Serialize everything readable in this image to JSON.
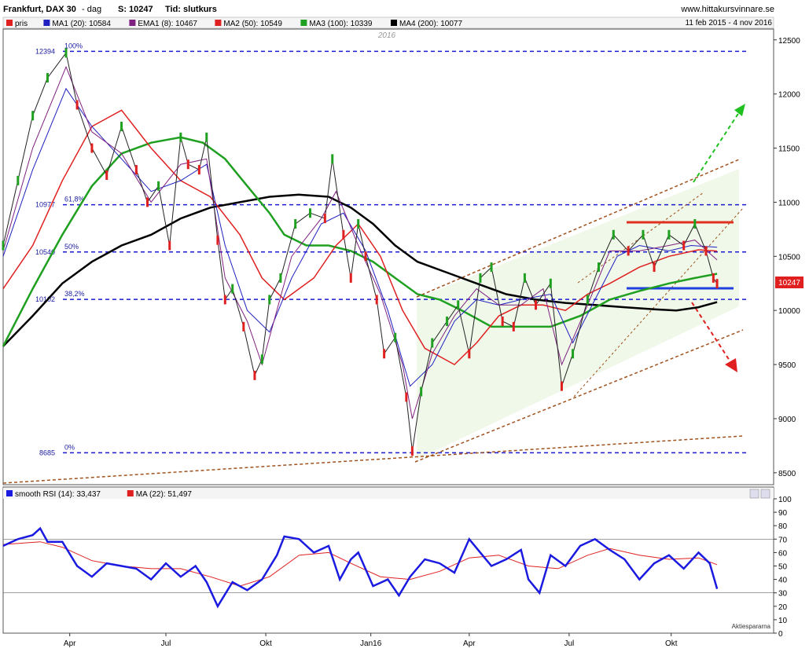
{
  "header": {
    "title": "Frankfurt, DAX 30",
    "period": "- dag",
    "last": "S: 10247",
    "tid": "Tid: slutkurs",
    "site": "www.hittakursvinnare.se",
    "range": "11 feb 2015 - 4 nov 2016"
  },
  "legend": [
    {
      "label": "pris",
      "color": "#e02020"
    },
    {
      "label": "MA1 (20): 10584",
      "color": "#2020c0"
    },
    {
      "label": "EMA1 (8): 10467",
      "color": "#802080"
    },
    {
      "label": "MA2 (50): 10549",
      "color": "#e02020"
    },
    {
      "label": "MA3 (100): 10339",
      "color": "#20a020"
    },
    {
      "label": "MA4 (200): 10077",
      "color": "#000000"
    }
  ],
  "rsi_legend": [
    {
      "label": "smooth RSI (14): 33,437",
      "color": "#1a1ae0"
    },
    {
      "label": "MA (22): 51,497",
      "color": "#e02020"
    }
  ],
  "year_label": "2016",
  "last_price_badge": "10247",
  "watermark": "Aktiespararna",
  "chart_data": {
    "type": "line",
    "title": "Frankfurt, DAX 30",
    "x_ticks": [
      "Apr",
      "Jul",
      "Okt",
      "Jan16",
      "Apr",
      "Jul",
      "Okt"
    ],
    "y_ticks": [
      8500,
      9000,
      9500,
      10000,
      10500,
      11000,
      11500,
      12000,
      12500
    ],
    "ylim": [
      8390,
      12600
    ],
    "rsi_ticks": [
      0,
      10,
      20,
      30,
      40,
      50,
      60,
      70,
      80,
      90,
      100
    ],
    "rsi_ylim": [
      0,
      100
    ],
    "rsi_levels": [
      30,
      70
    ],
    "fib_levels": [
      {
        "value": 12394,
        "label": "12394",
        "pct": "100%"
      },
      {
        "value": 10977,
        "label": "10977",
        "pct": "61,8%"
      },
      {
        "value": 10540,
        "label": "10540",
        "pct": "50%"
      },
      {
        "value": 10102,
        "label": "10102",
        "pct": "38,2%"
      },
      {
        "value": 8685,
        "label": "8685",
        "pct": "0%"
      }
    ],
    "price_path": [
      [
        0.0,
        10600
      ],
      [
        0.02,
        11200
      ],
      [
        0.04,
        11800
      ],
      [
        0.06,
        12150
      ],
      [
        0.085,
        12380
      ],
      [
        0.1,
        11900
      ],
      [
        0.12,
        11500
      ],
      [
        0.14,
        11250
      ],
      [
        0.16,
        11700
      ],
      [
        0.18,
        11300
      ],
      [
        0.195,
        11000
      ],
      [
        0.21,
        11150
      ],
      [
        0.225,
        10600
      ],
      [
        0.24,
        11600
      ],
      [
        0.25,
        11350
      ],
      [
        0.265,
        11300
      ],
      [
        0.275,
        11600
      ],
      [
        0.29,
        10650
      ],
      [
        0.3,
        10100
      ],
      [
        0.31,
        10200
      ],
      [
        0.325,
        9850
      ],
      [
        0.34,
        9400
      ],
      [
        0.35,
        9550
      ],
      [
        0.36,
        10100
      ],
      [
        0.375,
        10300
      ],
      [
        0.395,
        10800
      ],
      [
        0.415,
        10900
      ],
      [
        0.435,
        10850
      ],
      [
        0.445,
        11400
      ],
      [
        0.46,
        10700
      ],
      [
        0.47,
        10300
      ],
      [
        0.48,
        10800
      ],
      [
        0.49,
        10500
      ],
      [
        0.505,
        10100
      ],
      [
        0.515,
        9600
      ],
      [
        0.53,
        9750
      ],
      [
        0.545,
        9200
      ],
      [
        0.553,
        8700
      ],
      [
        0.565,
        9250
      ],
      [
        0.58,
        9700
      ],
      [
        0.6,
        9900
      ],
      [
        0.615,
        10050
      ],
      [
        0.63,
        9600
      ],
      [
        0.645,
        10300
      ],
      [
        0.66,
        10400
      ],
      [
        0.675,
        9900
      ],
      [
        0.69,
        9850
      ],
      [
        0.705,
        10300
      ],
      [
        0.72,
        10050
      ],
      [
        0.74,
        10250
      ],
      [
        0.755,
        9300
      ],
      [
        0.77,
        9600
      ],
      [
        0.79,
        10100
      ],
      [
        0.805,
        10400
      ],
      [
        0.825,
        10700
      ],
      [
        0.845,
        10550
      ],
      [
        0.865,
        10700
      ],
      [
        0.88,
        10400
      ],
      [
        0.9,
        10700
      ],
      [
        0.92,
        10600
      ],
      [
        0.935,
        10800
      ],
      [
        0.95,
        10550
      ],
      [
        0.96,
        10300
      ],
      [
        0.965,
        10247
      ]
    ],
    "ma20_path": [
      [
        0.0,
        10500
      ],
      [
        0.04,
        11300
      ],
      [
        0.085,
        12050
      ],
      [
        0.12,
        11700
      ],
      [
        0.16,
        11400
      ],
      [
        0.2,
        11100
      ],
      [
        0.24,
        11200
      ],
      [
        0.275,
        11350
      ],
      [
        0.3,
        10600
      ],
      [
        0.33,
        10000
      ],
      [
        0.36,
        9800
      ],
      [
        0.39,
        10300
      ],
      [
        0.43,
        10800
      ],
      [
        0.46,
        10900
      ],
      [
        0.49,
        10550
      ],
      [
        0.52,
        10000
      ],
      [
        0.55,
        9300
      ],
      [
        0.58,
        9500
      ],
      [
        0.61,
        9900
      ],
      [
        0.64,
        10100
      ],
      [
        0.67,
        10050
      ],
      [
        0.7,
        10100
      ],
      [
        0.74,
        10150
      ],
      [
        0.77,
        9700
      ],
      [
        0.8,
        10100
      ],
      [
        0.83,
        10500
      ],
      [
        0.86,
        10600
      ],
      [
        0.9,
        10550
      ],
      [
        0.93,
        10600
      ],
      [
        0.965,
        10584
      ]
    ],
    "ema8_path": [
      [
        0.0,
        10550
      ],
      [
        0.04,
        11500
      ],
      [
        0.085,
        12250
      ],
      [
        0.12,
        11650
      ],
      [
        0.16,
        11450
      ],
      [
        0.2,
        11000
      ],
      [
        0.24,
        11350
      ],
      [
        0.275,
        11400
      ],
      [
        0.3,
        10300
      ],
      [
        0.33,
        9900
      ],
      [
        0.35,
        9500
      ],
      [
        0.39,
        10500
      ],
      [
        0.43,
        10850
      ],
      [
        0.45,
        11100
      ],
      [
        0.48,
        10600
      ],
      [
        0.51,
        10150
      ],
      [
        0.54,
        9500
      ],
      [
        0.553,
        9000
      ],
      [
        0.58,
        9600
      ],
      [
        0.61,
        9950
      ],
      [
        0.64,
        10200
      ],
      [
        0.67,
        10050
      ],
      [
        0.7,
        10050
      ],
      [
        0.73,
        10200
      ],
      [
        0.755,
        9500
      ],
      [
        0.79,
        10050
      ],
      [
        0.82,
        10550
      ],
      [
        0.86,
        10550
      ],
      [
        0.9,
        10600
      ],
      [
        0.935,
        10650
      ],
      [
        0.965,
        10467
      ]
    ],
    "ma50_path": [
      [
        0.0,
        10200
      ],
      [
        0.04,
        10600
      ],
      [
        0.08,
        11200
      ],
      [
        0.12,
        11700
      ],
      [
        0.16,
        11850
      ],
      [
        0.2,
        11500
      ],
      [
        0.24,
        11200
      ],
      [
        0.28,
        11050
      ],
      [
        0.32,
        10700
      ],
      [
        0.35,
        10300
      ],
      [
        0.38,
        10100
      ],
      [
        0.42,
        10300
      ],
      [
        0.45,
        10600
      ],
      [
        0.48,
        10800
      ],
      [
        0.51,
        10500
      ],
      [
        0.54,
        10000
      ],
      [
        0.57,
        9650
      ],
      [
        0.61,
        9500
      ],
      [
        0.64,
        9700
      ],
      [
        0.67,
        9950
      ],
      [
        0.7,
        10050
      ],
      [
        0.73,
        10050
      ],
      [
        0.76,
        10000
      ],
      [
        0.79,
        10150
      ],
      [
        0.82,
        10250
      ],
      [
        0.86,
        10400
      ],
      [
        0.9,
        10500
      ],
      [
        0.94,
        10560
      ],
      [
        0.965,
        10549
      ]
    ],
    "ma100_path": [
      [
        0.0,
        9670
      ],
      [
        0.04,
        10200
      ],
      [
        0.08,
        10700
      ],
      [
        0.12,
        11150
      ],
      [
        0.16,
        11450
      ],
      [
        0.2,
        11550
      ],
      [
        0.24,
        11600
      ],
      [
        0.27,
        11550
      ],
      [
        0.3,
        11400
      ],
      [
        0.33,
        11150
      ],
      [
        0.36,
        10900
      ],
      [
        0.38,
        10700
      ],
      [
        0.41,
        10600
      ],
      [
        0.44,
        10600
      ],
      [
        0.47,
        10550
      ],
      [
        0.5,
        10450
      ],
      [
        0.53,
        10300
      ],
      [
        0.56,
        10150
      ],
      [
        0.59,
        10100
      ],
      [
        0.62,
        10000
      ],
      [
        0.66,
        9850
      ],
      [
        0.7,
        9850
      ],
      [
        0.74,
        9850
      ],
      [
        0.78,
        9950
      ],
      [
        0.82,
        10100
      ],
      [
        0.86,
        10180
      ],
      [
        0.9,
        10250
      ],
      [
        0.935,
        10300
      ],
      [
        0.965,
        10339
      ]
    ],
    "ma200_path": [
      [
        0.0,
        9670
      ],
      [
        0.04,
        9950
      ],
      [
        0.08,
        10250
      ],
      [
        0.12,
        10450
      ],
      [
        0.16,
        10600
      ],
      [
        0.2,
        10700
      ],
      [
        0.24,
        10850
      ],
      [
        0.28,
        10950
      ],
      [
        0.32,
        11000
      ],
      [
        0.36,
        11050
      ],
      [
        0.4,
        11070
      ],
      [
        0.44,
        11050
      ],
      [
        0.47,
        10950
      ],
      [
        0.5,
        10800
      ],
      [
        0.53,
        10600
      ],
      [
        0.56,
        10450
      ],
      [
        0.6,
        10350
      ],
      [
        0.64,
        10250
      ],
      [
        0.68,
        10150
      ],
      [
        0.72,
        10100
      ],
      [
        0.76,
        10070
      ],
      [
        0.8,
        10050
      ],
      [
        0.84,
        10030
      ],
      [
        0.88,
        10010
      ],
      [
        0.91,
        10000
      ],
      [
        0.94,
        10030
      ],
      [
        0.965,
        10077
      ]
    ],
    "rsi_path": [
      [
        0.0,
        65
      ],
      [
        0.02,
        70
      ],
      [
        0.04,
        73
      ],
      [
        0.05,
        78
      ],
      [
        0.06,
        68
      ],
      [
        0.08,
        68
      ],
      [
        0.1,
        50
      ],
      [
        0.12,
        42
      ],
      [
        0.14,
        52
      ],
      [
        0.16,
        50
      ],
      [
        0.18,
        48
      ],
      [
        0.2,
        40
      ],
      [
        0.22,
        52
      ],
      [
        0.24,
        42
      ],
      [
        0.26,
        50
      ],
      [
        0.275,
        38
      ],
      [
        0.29,
        20
      ],
      [
        0.31,
        38
      ],
      [
        0.33,
        32
      ],
      [
        0.35,
        40
      ],
      [
        0.37,
        58
      ],
      [
        0.38,
        72
      ],
      [
        0.4,
        70
      ],
      [
        0.42,
        60
      ],
      [
        0.44,
        65
      ],
      [
        0.455,
        40
      ],
      [
        0.47,
        55
      ],
      [
        0.48,
        60
      ],
      [
        0.5,
        35
      ],
      [
        0.52,
        40
      ],
      [
        0.535,
        28
      ],
      [
        0.55,
        42
      ],
      [
        0.57,
        55
      ],
      [
        0.59,
        52
      ],
      [
        0.61,
        45
      ],
      [
        0.63,
        70
      ],
      [
        0.645,
        60
      ],
      [
        0.66,
        50
      ],
      [
        0.68,
        55
      ],
      [
        0.7,
        62
      ],
      [
        0.71,
        40
      ],
      [
        0.725,
        30
      ],
      [
        0.74,
        58
      ],
      [
        0.76,
        50
      ],
      [
        0.78,
        65
      ],
      [
        0.8,
        70
      ],
      [
        0.82,
        62
      ],
      [
        0.84,
        55
      ],
      [
        0.86,
        40
      ],
      [
        0.88,
        52
      ],
      [
        0.9,
        58
      ],
      [
        0.92,
        48
      ],
      [
        0.94,
        60
      ],
      [
        0.955,
        52
      ],
      [
        0.965,
        33
      ]
    ],
    "rsi_ma_path": [
      [
        0.0,
        66
      ],
      [
        0.05,
        68
      ],
      [
        0.08,
        64
      ],
      [
        0.12,
        54
      ],
      [
        0.16,
        50
      ],
      [
        0.2,
        48
      ],
      [
        0.24,
        48
      ],
      [
        0.28,
        42
      ],
      [
        0.32,
        35
      ],
      [
        0.36,
        42
      ],
      [
        0.4,
        58
      ],
      [
        0.44,
        60
      ],
      [
        0.47,
        52
      ],
      [
        0.51,
        42
      ],
      [
        0.55,
        40
      ],
      [
        0.59,
        46
      ],
      [
        0.63,
        56
      ],
      [
        0.67,
        58
      ],
      [
        0.71,
        50
      ],
      [
        0.75,
        48
      ],
      [
        0.79,
        58
      ],
      [
        0.82,
        63
      ],
      [
        0.86,
        58
      ],
      [
        0.9,
        55
      ],
      [
        0.94,
        56
      ],
      [
        0.965,
        51
      ]
    ]
  }
}
